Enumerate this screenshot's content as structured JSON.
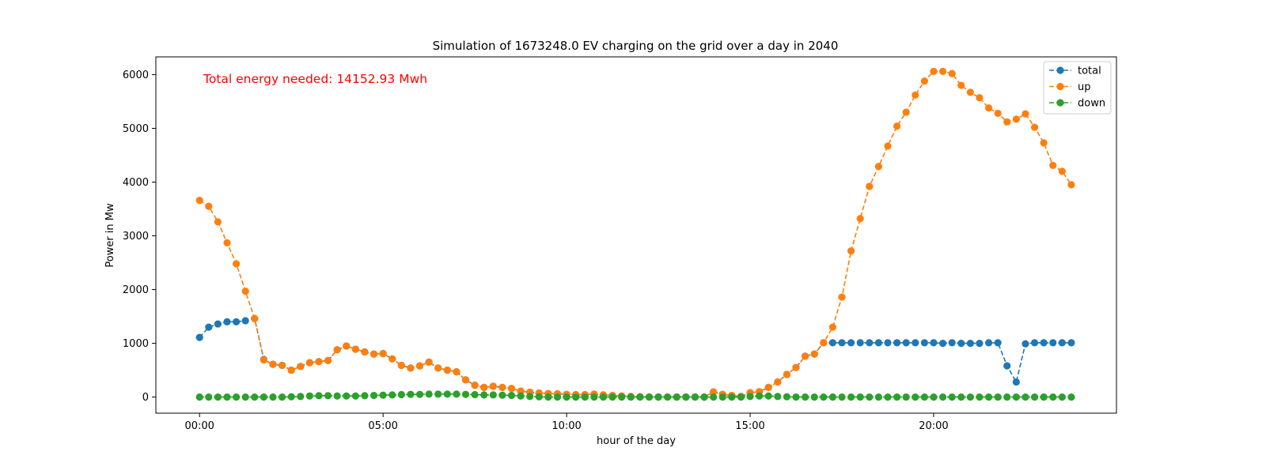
{
  "chart_data": {
    "type": "line",
    "title": "Simulation of 1673248.0 EV charging on the grid over a day in 2040",
    "xlabel": "hour of the day",
    "ylabel": "Power in Mw",
    "annotation": "Total energy needed: 14152.93 Mwh",
    "annotation_color": "#ff0000",
    "xlim_hours": [
      -1.19,
      24.98
    ],
    "ylim": [
      -300,
      6330
    ],
    "x_ticks": [
      {
        "hour": 0,
        "label": "00:00"
      },
      {
        "hour": 5,
        "label": "05:00"
      },
      {
        "hour": 10,
        "label": "10:00"
      },
      {
        "hour": 15,
        "label": "15:00"
      },
      {
        "hour": 20,
        "label": "20:00"
      }
    ],
    "y_ticks": [
      0,
      1000,
      2000,
      3000,
      4000,
      5000,
      6000
    ],
    "grid": false,
    "legend_position": "top-right",
    "line_style": "dashed",
    "marker": "circle",
    "x_step_hours": 0.25,
    "series": [
      {
        "name": "total",
        "color": "#1f77b4",
        "values": [
          1110,
          1300,
          1360,
          1400,
          1400,
          1420,
          1460,
          700,
          610,
          590,
          500,
          570,
          640,
          660,
          680,
          880,
          950,
          890,
          840,
          800,
          810,
          710,
          590,
          540,
          580,
          650,
          540,
          500,
          470,
          320,
          220,
          180,
          200,
          180,
          160,
          110,
          90,
          75,
          65,
          60,
          50,
          45,
          45,
          55,
          40,
          30,
          20,
          10,
          5,
          2,
          1,
          1,
          1,
          1,
          1,
          0,
          95,
          50,
          30,
          10,
          80,
          100,
          180,
          280,
          420,
          550,
          760,
          800,
          1010,
          1010,
          1010,
          1010,
          1010,
          1010,
          1010,
          1010,
          1010,
          1010,
          1010,
          1010,
          1010,
          1000,
          1010,
          1000,
          1000,
          1000,
          1010,
          1010,
          580,
          280,
          990,
          1010,
          1010,
          1010,
          1010,
          1010
        ]
      },
      {
        "name": "up",
        "color": "#ff7f0e",
        "values": [
          3660,
          3550,
          3260,
          2870,
          2480,
          1970,
          1460,
          690,
          610,
          590,
          500,
          570,
          640,
          660,
          680,
          880,
          950,
          890,
          840,
          800,
          810,
          710,
          590,
          540,
          580,
          650,
          540,
          500,
          470,
          320,
          220,
          180,
          200,
          180,
          160,
          110,
          90,
          75,
          65,
          60,
          50,
          45,
          45,
          55,
          40,
          30,
          20,
          10,
          5,
          2,
          1,
          1,
          1,
          1,
          1,
          0,
          95,
          50,
          30,
          10,
          80,
          100,
          180,
          280,
          420,
          550,
          760,
          800,
          1010,
          1300,
          1860,
          2720,
          3320,
          3920,
          4290,
          4670,
          5040,
          5300,
          5620,
          5880,
          6060,
          6060,
          6020,
          5800,
          5670,
          5570,
          5380,
          5280,
          5120,
          5170,
          5270,
          5020,
          4730,
          4310,
          4200,
          3950
        ]
      },
      {
        "name": "down",
        "color": "#2ca02c",
        "values": [
          0,
          0,
          0,
          0,
          0,
          0,
          0,
          0,
          0,
          0,
          5,
          10,
          20,
          25,
          25,
          20,
          20,
          20,
          25,
          30,
          35,
          40,
          45,
          50,
          50,
          55,
          55,
          55,
          55,
          50,
          45,
          40,
          40,
          35,
          30,
          20,
          10,
          5,
          0,
          0,
          0,
          0,
          0,
          0,
          0,
          0,
          0,
          0,
          0,
          0,
          0,
          0,
          0,
          0,
          0,
          0,
          0,
          0,
          0,
          0,
          10,
          20,
          20,
          10,
          5,
          0,
          0,
          0,
          0,
          0,
          0,
          0,
          0,
          0,
          0,
          0,
          0,
          0,
          0,
          0,
          0,
          0,
          0,
          0,
          0,
          0,
          0,
          0,
          0,
          0,
          0,
          0,
          0,
          0,
          0,
          0
        ]
      }
    ]
  }
}
